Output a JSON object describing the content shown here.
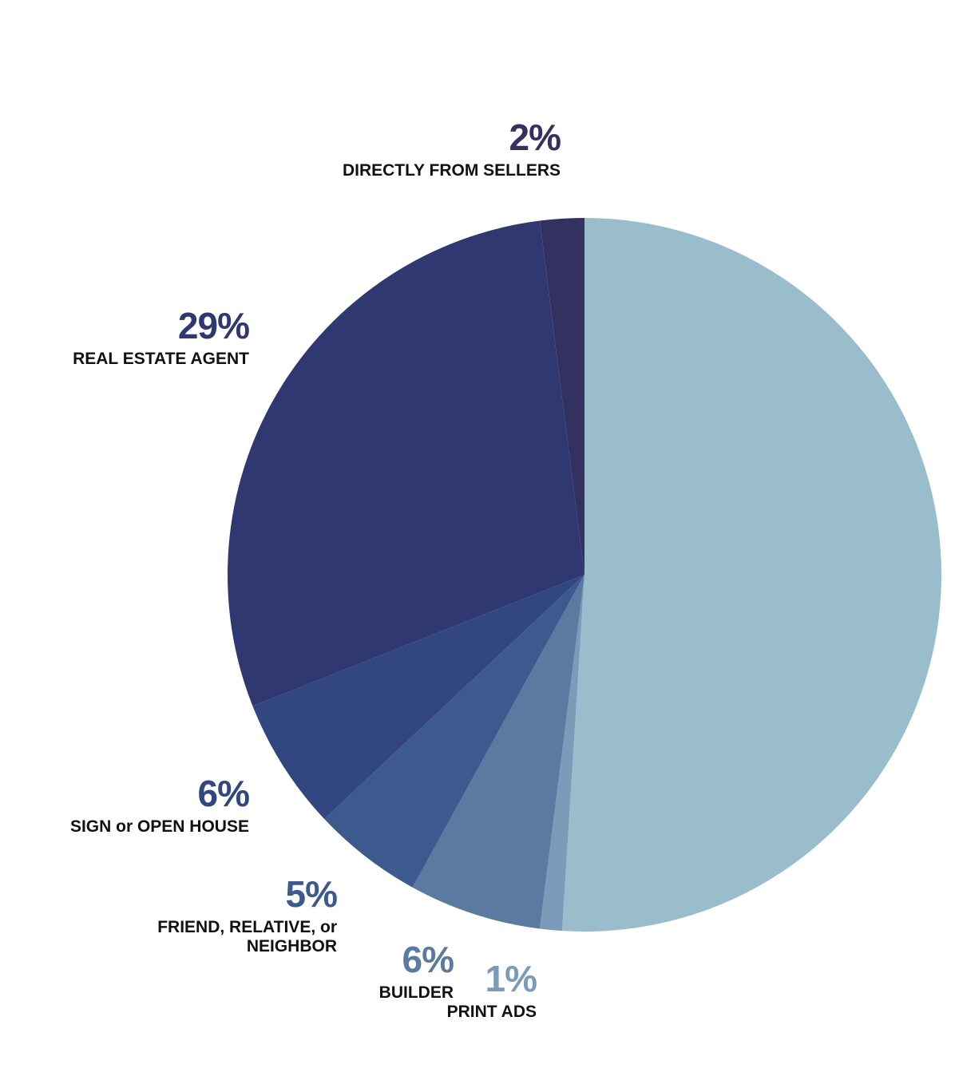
{
  "chart_data": {
    "type": "pie",
    "start_angle_deg": 0,
    "direction": "clockwise",
    "slices": [
      {
        "label": "",
        "pct_label": "",
        "value": 51,
        "color": "#9abdcb"
      },
      {
        "label": "PRINT ADS",
        "pct_label": "1%",
        "value": 1,
        "color": "#7a9cb8"
      },
      {
        "label": "BUILDER",
        "pct_label": "6%",
        "value": 6,
        "color": "#5a7aa0"
      },
      {
        "label": "FRIEND, RELATIVE, or NEIGHBOR",
        "pct_label": "5%",
        "value": 5,
        "color": "#3d5a8e"
      },
      {
        "label": "SIGN or OPEN HOUSE",
        "pct_label": "6%",
        "value": 6,
        "color": "#32467f"
      },
      {
        "label": "REAL ESTATE AGENT",
        "pct_label": "29%",
        "value": 29,
        "color": "#2f3870"
      },
      {
        "label": "DIRECTLY FROM SELLERS",
        "pct_label": "2%",
        "value": 2,
        "color": "#33315f"
      }
    ]
  }
}
